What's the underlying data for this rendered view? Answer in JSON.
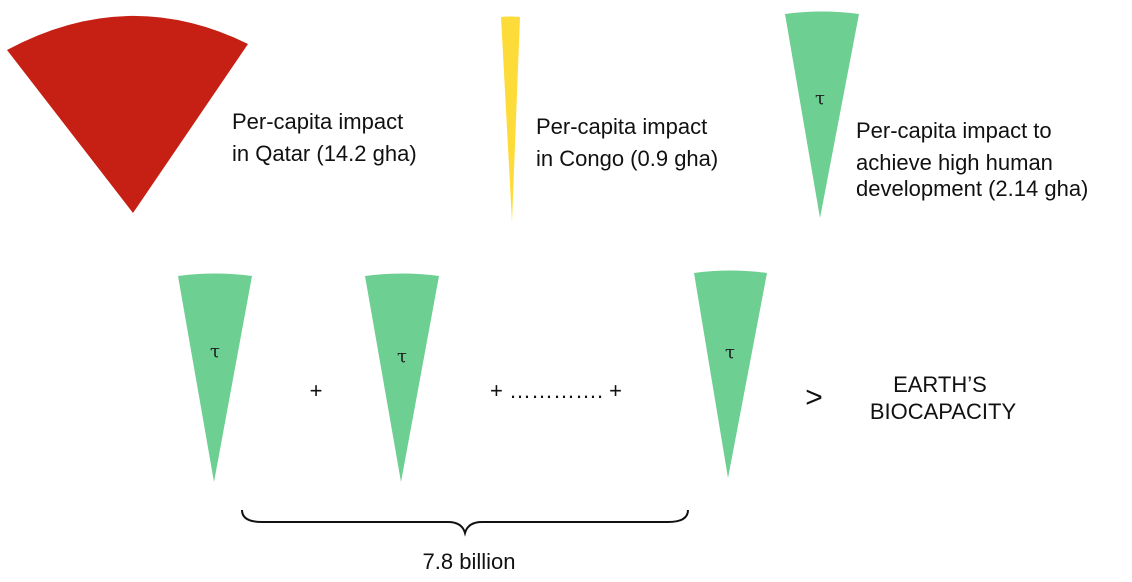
{
  "colors": {
    "qatar": "#C61F14",
    "congo": "#FDDC3A",
    "target": "#6DCF92",
    "text": "#111111"
  },
  "examples": {
    "qatar": {
      "label_lines": [
        "Per-capita impact",
        "in Qatar (14.2 gha)"
      ],
      "gha": 14.2
    },
    "congo": {
      "label_lines": [
        "Per-capita impact",
        "in Congo (0.9 gha)"
      ],
      "gha": 0.9
    },
    "target": {
      "symbol": "τ",
      "label_lines": [
        "Per-capita impact to",
        "achieve high human",
        "development (2.14 gha)"
      ],
      "gha": 2.14
    }
  },
  "equation": {
    "cone_symbol": "τ",
    "plus_1": "+",
    "ellipsis_plus": "+ …………. +",
    "comparator": ">",
    "result_lines": [
      "EARTH’S",
      "BIOCAPACITY"
    ],
    "population_label": "7.8 billion"
  }
}
